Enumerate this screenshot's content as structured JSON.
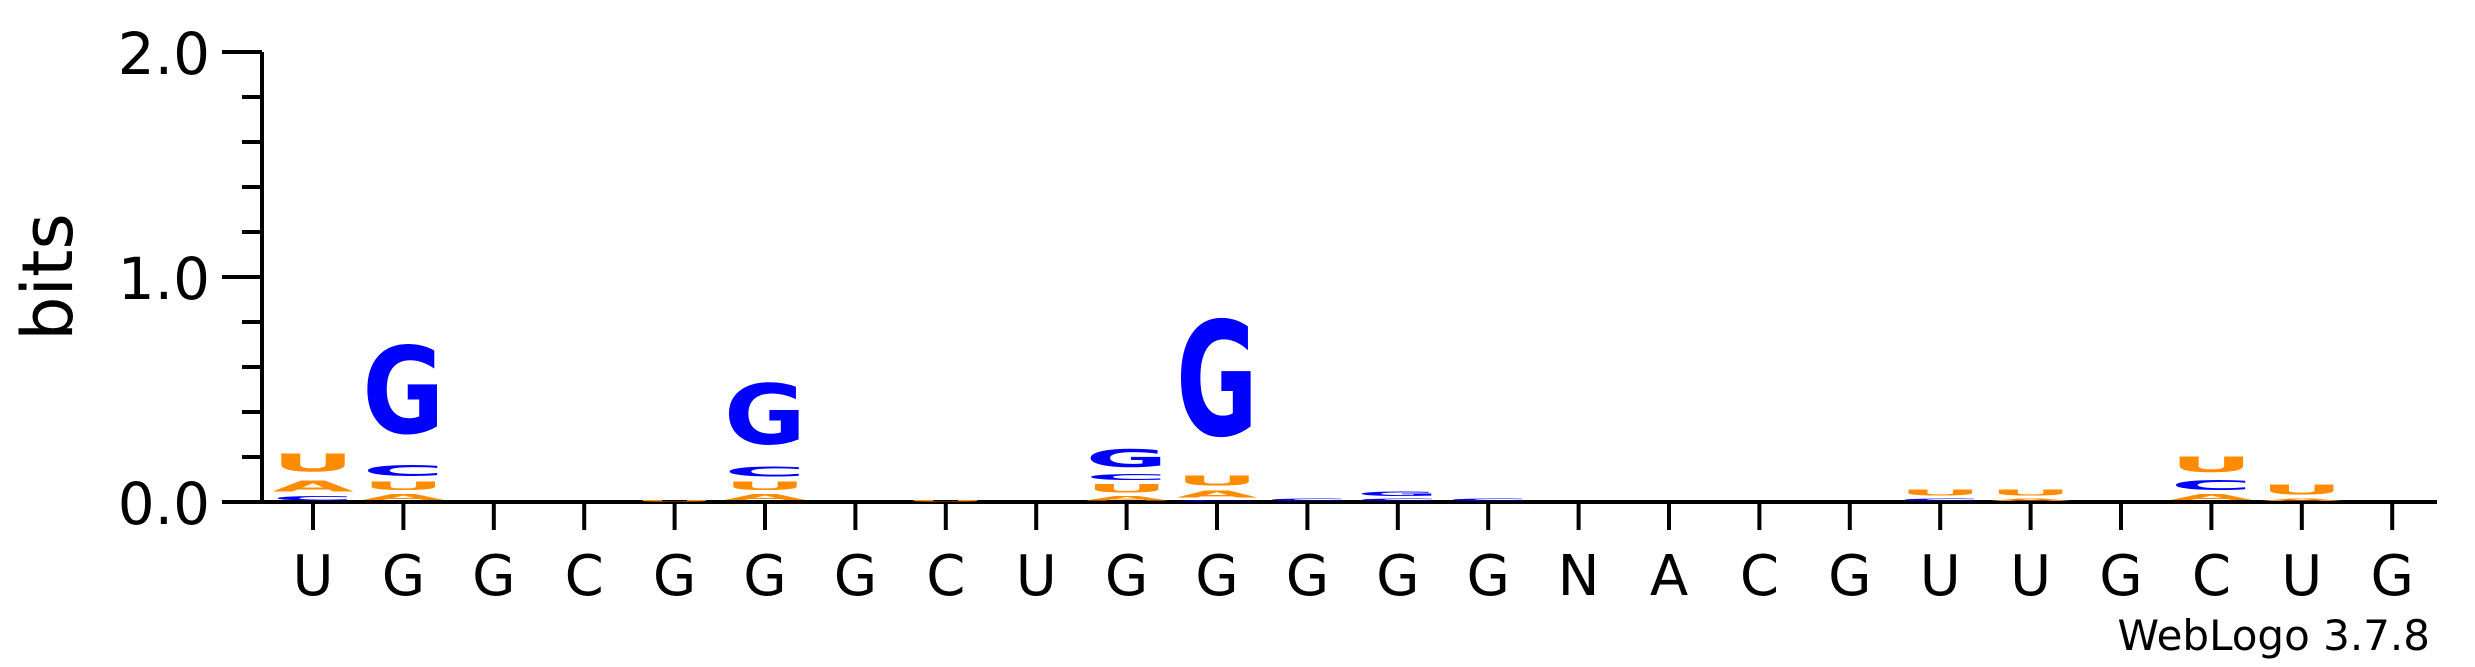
{
  "chart_data": {
    "type": "sequence-logo",
    "ylabel": "bits",
    "ylim": [
      0,
      2.0
    ],
    "yticks": [
      "0.0",
      "1.0",
      "2.0"
    ],
    "credit": "WebLogo 3.7.8",
    "colors": {
      "A": "#ff8c00",
      "U": "#ff8c00",
      "G": "#0000ff",
      "C": "#0000ff"
    },
    "positions": [
      {
        "label": "U",
        "stack": [
          {
            "base": "C",
            "bits": 0.03
          },
          {
            "base": "A",
            "bits": 0.08
          },
          {
            "base": "U",
            "bits": 0.13
          }
        ]
      },
      {
        "label": "G",
        "stack": [
          {
            "base": "A",
            "bits": 0.04
          },
          {
            "base": "U",
            "bits": 0.06
          },
          {
            "base": "C",
            "bits": 0.08
          },
          {
            "base": "G",
            "bits": 0.62
          }
        ]
      },
      {
        "label": "G",
        "stack": []
      },
      {
        "label": "C",
        "stack": []
      },
      {
        "label": "G",
        "stack": [
          {
            "base": "U",
            "bits": 0.01
          }
        ]
      },
      {
        "label": "G",
        "stack": [
          {
            "base": "A",
            "bits": 0.04
          },
          {
            "base": "U",
            "bits": 0.06
          },
          {
            "base": "C",
            "bits": 0.07
          },
          {
            "base": "G",
            "bits": 0.43
          }
        ]
      },
      {
        "label": "G",
        "stack": []
      },
      {
        "label": "C",
        "stack": [
          {
            "base": "U",
            "bits": 0.01
          }
        ]
      },
      {
        "label": "U",
        "stack": []
      },
      {
        "label": "G",
        "stack": [
          {
            "base": "A",
            "bits": 0.03
          },
          {
            "base": "U",
            "bits": 0.06
          },
          {
            "base": "C",
            "bits": 0.04
          },
          {
            "base": "G",
            "bits": 0.13
          }
        ]
      },
      {
        "label": "G",
        "stack": [
          {
            "base": "C",
            "bits": 0.01
          },
          {
            "base": "A",
            "bits": 0.05
          },
          {
            "base": "U",
            "bits": 0.07
          },
          {
            "base": "G",
            "bits": 0.82
          }
        ]
      },
      {
        "label": "G",
        "stack": [
          {
            "base": "C",
            "bits": 0.02
          }
        ]
      },
      {
        "label": "G",
        "stack": [
          {
            "base": "C",
            "bits": 0.02
          },
          {
            "base": "G",
            "bits": 0.03
          }
        ]
      },
      {
        "label": "G",
        "stack": [
          {
            "base": "C",
            "bits": 0.02
          }
        ]
      },
      {
        "label": "N",
        "stack": []
      },
      {
        "label": "A",
        "stack": []
      },
      {
        "label": "C",
        "stack": []
      },
      {
        "label": "G",
        "stack": []
      },
      {
        "label": "U",
        "stack": [
          {
            "base": "C",
            "bits": 0.02
          },
          {
            "base": "U",
            "bits": 0.04
          }
        ]
      },
      {
        "label": "U",
        "stack": [
          {
            "base": "A",
            "bits": 0.02
          },
          {
            "base": "U",
            "bits": 0.04
          }
        ]
      },
      {
        "label": "G",
        "stack": []
      },
      {
        "label": "C",
        "stack": [
          {
            "base": "A",
            "bits": 0.04
          },
          {
            "base": "C",
            "bits": 0.07
          },
          {
            "base": "U",
            "bits": 0.11
          }
        ]
      },
      {
        "label": "U",
        "stack": [
          {
            "base": "A",
            "bits": 0.02
          },
          {
            "base": "U",
            "bits": 0.07
          }
        ]
      },
      {
        "label": "G",
        "stack": []
      }
    ]
  }
}
